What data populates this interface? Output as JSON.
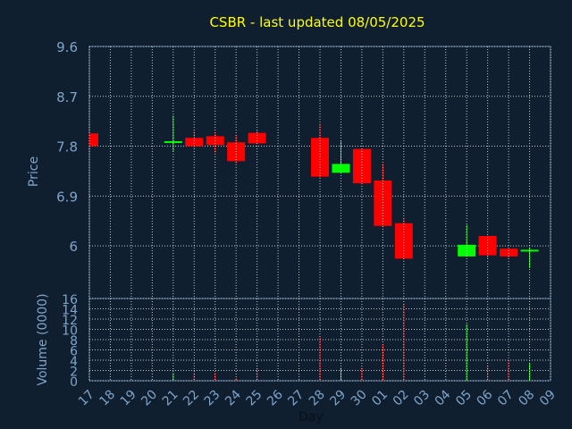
{
  "chart_data": {
    "type": "candlestick",
    "title": "CSBR - last updated 08/05/2025",
    "price_ylabel": "Price",
    "volume_ylabel": "Volume (0000)",
    "xlabel": "Day",
    "price_yticks": [
      "9.6",
      "8.7",
      "7.8",
      "6.9",
      "6"
    ],
    "price_ylim": [
      5.05,
      9.6
    ],
    "volume_yticks": [
      "16",
      "14",
      "12",
      "10",
      "8",
      "6",
      "4",
      "2",
      "0"
    ],
    "volume_ylim": [
      0,
      16
    ],
    "grid": true,
    "colors": {
      "up": "#00ff00",
      "down": "#ff0000",
      "grid": "#ffffff",
      "background": "#0f1f30",
      "frame": "#5a7a9a"
    },
    "days": [
      "17",
      "18",
      "19",
      "20",
      "21",
      "22",
      "23",
      "24",
      "25",
      "26",
      "27",
      "28",
      "29",
      "30",
      "01",
      "02",
      "03",
      "04",
      "05",
      "06",
      "07",
      "08",
      "09"
    ],
    "candles": [
      {
        "day": "17",
        "open": 8.03,
        "high": 8.03,
        "low": 7.8,
        "close": 7.8,
        "volume": 0
      },
      {
        "day": "21",
        "open": 7.89,
        "high": 8.35,
        "low": 7.7,
        "close": 7.89,
        "volume": 1.5
      },
      {
        "day": "22",
        "open": 7.95,
        "high": 8.07,
        "low": 7.77,
        "close": 7.8,
        "volume": 1.5
      },
      {
        "day": "23",
        "open": 7.98,
        "high": 8.05,
        "low": 7.68,
        "close": 7.82,
        "volume": 1.5
      },
      {
        "day": "24",
        "open": 7.87,
        "high": 8.0,
        "low": 7.49,
        "close": 7.53,
        "volume": 0.5
      },
      {
        "day": "25",
        "open": 8.04,
        "high": 8.08,
        "low": 7.85,
        "close": 7.85,
        "volume": 2.5
      },
      {
        "day": "28",
        "open": 7.95,
        "high": 8.2,
        "low": 7.23,
        "close": 7.25,
        "volume": 8.5
      },
      {
        "day": "29",
        "open": 7.32,
        "high": 7.9,
        "low": 7.32,
        "close": 7.48,
        "volume": 2.5
      },
      {
        "day": "30",
        "open": 7.75,
        "high": 7.75,
        "low": 7.13,
        "close": 7.13,
        "volume": 2.5
      },
      {
        "day": "01",
        "open": 7.18,
        "high": 7.48,
        "low": 6.34,
        "close": 6.36,
        "volume": 7.0
      },
      {
        "day": "02",
        "open": 6.41,
        "high": 6.5,
        "low": 5.77,
        "close": 5.77,
        "volume": 15.0
      },
      {
        "day": "05",
        "open": 5.81,
        "high": 6.38,
        "low": 5.81,
        "close": 6.02,
        "volume": 11.0
      },
      {
        "day": "06",
        "open": 6.18,
        "high": 6.18,
        "low": 5.78,
        "close": 5.83,
        "volume": 3.0
      },
      {
        "day": "07",
        "open": 5.95,
        "high": 5.95,
        "low": 5.78,
        "close": 5.81,
        "volume": 4.0
      },
      {
        "day": "08",
        "open": 5.9,
        "high": 5.97,
        "low": 5.6,
        "close": 5.93,
        "volume": 3.5
      }
    ]
  }
}
